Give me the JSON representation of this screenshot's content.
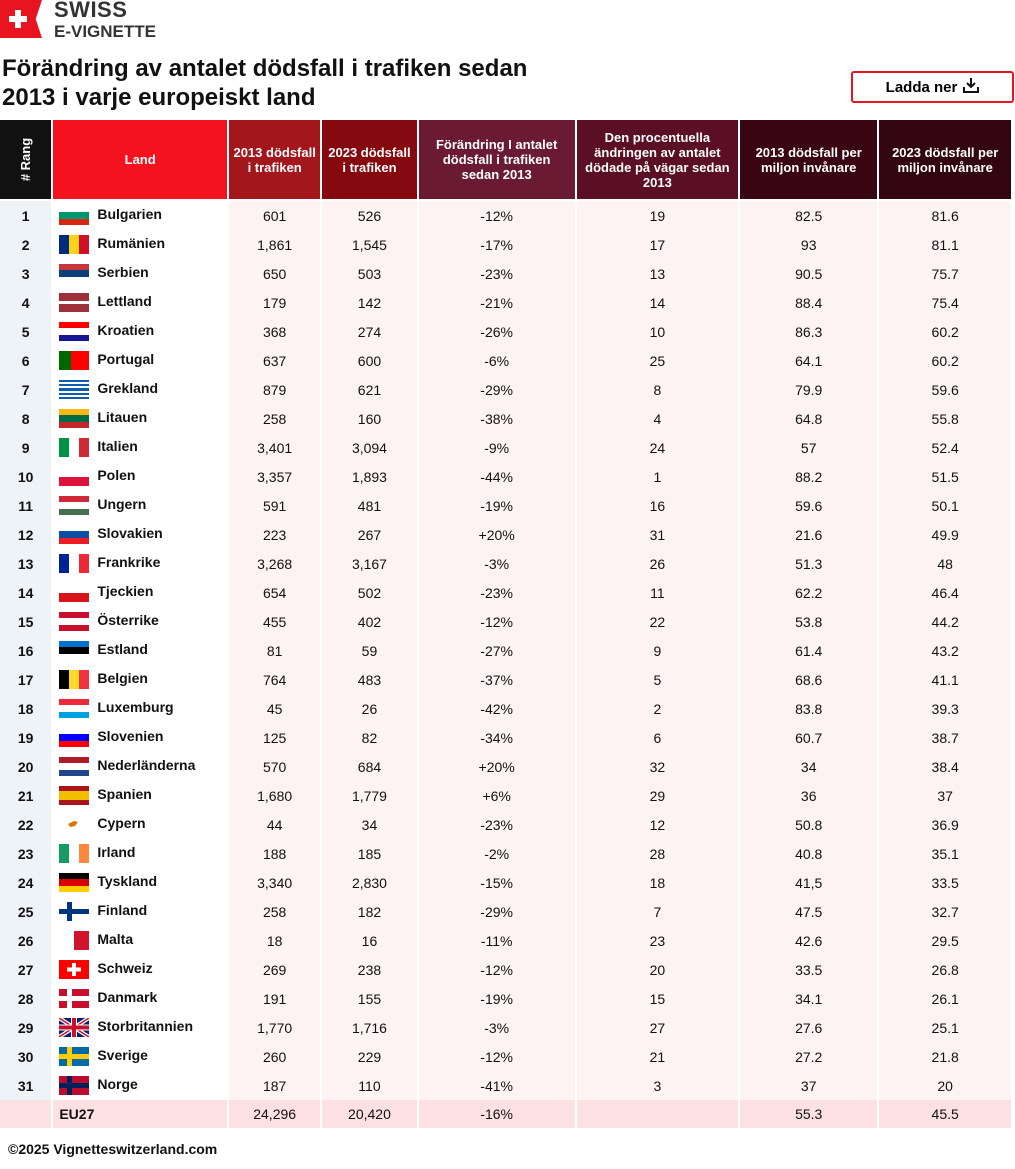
{
  "brand": {
    "line1": "SWISS",
    "line2": "E-VIGNETTE"
  },
  "title": "Förändring av antalet dödsfall i trafiken sedan 2013 i varje europeiskt land",
  "download_label": "Ladda ner",
  "colors": {
    "accent": "#e8141f"
  },
  "headers": [
    {
      "label": "# Rang",
      "color": "#111111"
    },
    {
      "label": "Land",
      "color": "#f5121f"
    },
    {
      "label": "2013 dödsfall i trafiken",
      "color": "#a3161c"
    },
    {
      "label": "2023 dödsfall i trafiken",
      "color": "#85090f"
    },
    {
      "label": "Förändring I antalet dödsfall i trafiken sedan 2013",
      "color": "#6b1a33"
    },
    {
      "label": "Den procentuella ändringen av antalet dödade på vägar sedan 2013",
      "color": "#5a0f24"
    },
    {
      "label": "2013 dödsfall per miljon invånare",
      "color": "#3b0613"
    },
    {
      "label": "2023 dödsfall per miljon invånare",
      "color": "#320510"
    }
  ],
  "rows": [
    [
      "1",
      "Bulgarien",
      "601",
      "526",
      "-12%",
      "19",
      "82.5",
      "81.6"
    ],
    [
      "2",
      "Rumänien",
      "1,861",
      "1,545",
      "-17%",
      "17",
      "93",
      "81.1"
    ],
    [
      "3",
      "Serbien",
      "650",
      "503",
      "-23%",
      "13",
      "90.5",
      "75.7"
    ],
    [
      "4",
      "Lettland",
      "179",
      "142",
      "-21%",
      "14",
      "88.4",
      "75.4"
    ],
    [
      "5",
      "Kroatien",
      "368",
      "274",
      "-26%",
      "10",
      "86.3",
      "60.2"
    ],
    [
      "6",
      "Portugal",
      "637",
      "600",
      "-6%",
      "25",
      "64.1",
      "60.2"
    ],
    [
      "7",
      "Grekland",
      "879",
      "621",
      "-29%",
      "8",
      "79.9",
      "59.6"
    ],
    [
      "8",
      "Litauen",
      "258",
      "160",
      "-38%",
      "4",
      "64.8",
      "55.8"
    ],
    [
      "9",
      "Italien",
      "3,401",
      "3,094",
      "-9%",
      "24",
      "57",
      "52.4"
    ],
    [
      "10",
      "Polen",
      "3,357",
      "1,893",
      "-44%",
      "1",
      "88.2",
      "51.5"
    ],
    [
      "11",
      "Ungern",
      "591",
      "481",
      "-19%",
      "16",
      "59.6",
      "50.1"
    ],
    [
      "12",
      "Slovakien",
      "223",
      "267",
      "+20%",
      "31",
      "21.6",
      "49.9"
    ],
    [
      "13",
      "Frankrike",
      "3,268",
      "3,167",
      "-3%",
      "26",
      "51.3",
      "48"
    ],
    [
      "14",
      "Tjeckien",
      "654",
      "502",
      "-23%",
      "11",
      "62.2",
      "46.4"
    ],
    [
      "15",
      "Österrike",
      "455",
      "402",
      "-12%",
      "22",
      "53.8",
      "44.2"
    ],
    [
      "16",
      "Estland",
      "81",
      "59",
      "-27%",
      "9",
      "61.4",
      "43.2"
    ],
    [
      "17",
      "Belgien",
      "764",
      "483",
      "-37%",
      "5",
      "68.6",
      "41.1"
    ],
    [
      "18",
      "Luxemburg",
      "45",
      "26",
      "-42%",
      "2",
      "83.8",
      "39.3"
    ],
    [
      "19",
      "Slovenien",
      "125",
      "82",
      "-34%",
      "6",
      "60.7",
      "38.7"
    ],
    [
      "20",
      "Nederländerna",
      "570",
      "684",
      "+20%",
      "32",
      "34",
      "38.4"
    ],
    [
      "21",
      "Spanien",
      "1,680",
      "1,779",
      "+6%",
      "29",
      "36",
      "37"
    ],
    [
      "22",
      "Cypern",
      "44",
      "34",
      "-23%",
      "12",
      "50.8",
      "36.9"
    ],
    [
      "23",
      "Irland",
      "188",
      "185",
      "-2%",
      "28",
      "40.8",
      "35.1"
    ],
    [
      "24",
      "Tyskland",
      "3,340",
      "2,830",
      "-15%",
      "18",
      "41,5",
      "33.5"
    ],
    [
      "25",
      "Finland",
      "258",
      "182",
      "-29%",
      "7",
      "47.5",
      "32.7"
    ],
    [
      "26",
      "Malta",
      "18",
      "16",
      "-11%",
      "23",
      "42.6",
      "29.5"
    ],
    [
      "27",
      "Schweiz",
      "269",
      "238",
      "-12%",
      "20",
      "33.5",
      "26.8"
    ],
    [
      "28",
      "Danmark",
      "191",
      "155",
      "-19%",
      "15",
      "34.1",
      "26.1"
    ],
    [
      "29",
      "Storbritannien",
      "1,770",
      "1,716",
      "-3%",
      "27",
      "27.6",
      "25.1"
    ],
    [
      "30",
      "Sverige",
      "260",
      "229",
      "-12%",
      "21",
      "27.2",
      "21.8"
    ],
    [
      "31",
      "Norge",
      "187",
      "110",
      "-41%",
      "3",
      "37",
      "20"
    ]
  ],
  "flags": [
    {
      "d": "h",
      "c": [
        "#ffffff",
        "#00966e",
        "#d62612"
      ]
    },
    {
      "d": "v",
      "c": [
        "#002b7f",
        "#fcd116",
        "#ce1126"
      ]
    },
    {
      "d": "h",
      "c": [
        "#c6363c",
        "#0c4076",
        "#ffffff"
      ]
    },
    {
      "d": "h",
      "c": [
        "#9e3039",
        "#9e3039",
        "#ffffff",
        "#9e3039",
        "#9e3039"
      ]
    },
    {
      "d": "h",
      "c": [
        "#ff0000",
        "#ffffff",
        "#171796"
      ]
    },
    {
      "d": "v",
      "c": [
        "#006600",
        "#006600",
        "#ff0000",
        "#ff0000",
        "#ff0000"
      ]
    },
    {
      "d": "h",
      "c": [
        "#0d5eaf",
        "#ffffff",
        "#0d5eaf",
        "#ffffff",
        "#0d5eaf",
        "#ffffff",
        "#0d5eaf",
        "#ffffff",
        "#0d5eaf"
      ]
    },
    {
      "d": "h",
      "c": [
        "#fdb913",
        "#006a44",
        "#c1272d"
      ]
    },
    {
      "d": "v",
      "c": [
        "#009246",
        "#ffffff",
        "#ce2b37"
      ]
    },
    {
      "d": "h",
      "c": [
        "#ffffff",
        "#dc143c"
      ]
    },
    {
      "d": "h",
      "c": [
        "#ce2939",
        "#ffffff",
        "#477050"
      ]
    },
    {
      "d": "h",
      "c": [
        "#ffffff",
        "#0b4ea2",
        "#ee1c25"
      ]
    },
    {
      "d": "v",
      "c": [
        "#002395",
        "#ffffff",
        "#ed2939"
      ]
    },
    {
      "d": "h",
      "c": [
        "#ffffff",
        "#d7141a"
      ]
    },
    {
      "d": "h",
      "c": [
        "#c8102e",
        "#ffffff",
        "#c8102e"
      ]
    },
    {
      "d": "h",
      "c": [
        "#0072ce",
        "#000000",
        "#ffffff"
      ]
    },
    {
      "d": "v",
      "c": [
        "#000000",
        "#fdda24",
        "#ef3340"
      ]
    },
    {
      "d": "h",
      "c": [
        "#ed2939",
        "#ffffff",
        "#00a1de"
      ]
    },
    {
      "d": "h",
      "c": [
        "#ffffff",
        "#0000ff",
        "#ff0000"
      ]
    },
    {
      "d": "h",
      "c": [
        "#ae1c28",
        "#ffffff",
        "#21468b"
      ]
    },
    {
      "d": "h",
      "c": [
        "#aa151b",
        "#f1bf00",
        "#f1bf00",
        "#aa151b"
      ]
    },
    {
      "d": "h",
      "c": [
        "#ffffff"
      ]
    },
    {
      "d": "v",
      "c": [
        "#169b62",
        "#ffffff",
        "#ff883e"
      ]
    },
    {
      "d": "h",
      "c": [
        "#000000",
        "#dd0000",
        "#ffce00"
      ]
    },
    {
      "d": "x",
      "c": [
        "#ffffff",
        "#003580"
      ]
    },
    {
      "d": "v",
      "c": [
        "#ffffff",
        "#cf142b"
      ]
    },
    {
      "d": "s",
      "c": [
        "#ff0000",
        "#ffffff"
      ]
    },
    {
      "d": "x",
      "c": [
        "#c8102e",
        "#ffffff"
      ]
    },
    {
      "d": "u",
      "c": [
        "#012169",
        "#ffffff",
        "#c8102e"
      ]
    },
    {
      "d": "x",
      "c": [
        "#006aa7",
        "#fecc00"
      ]
    },
    {
      "d": "x",
      "c": [
        "#ba0c2f",
        "#00205b"
      ]
    }
  ],
  "total": {
    "label": "EU27",
    "v2013": "24,296",
    "v2023": "20,420",
    "change": "-16%",
    "pct": "",
    "pm2013": "55.3",
    "pm2023": "45.5"
  },
  "footer": "©2025 Vignetteswitzerland.com"
}
